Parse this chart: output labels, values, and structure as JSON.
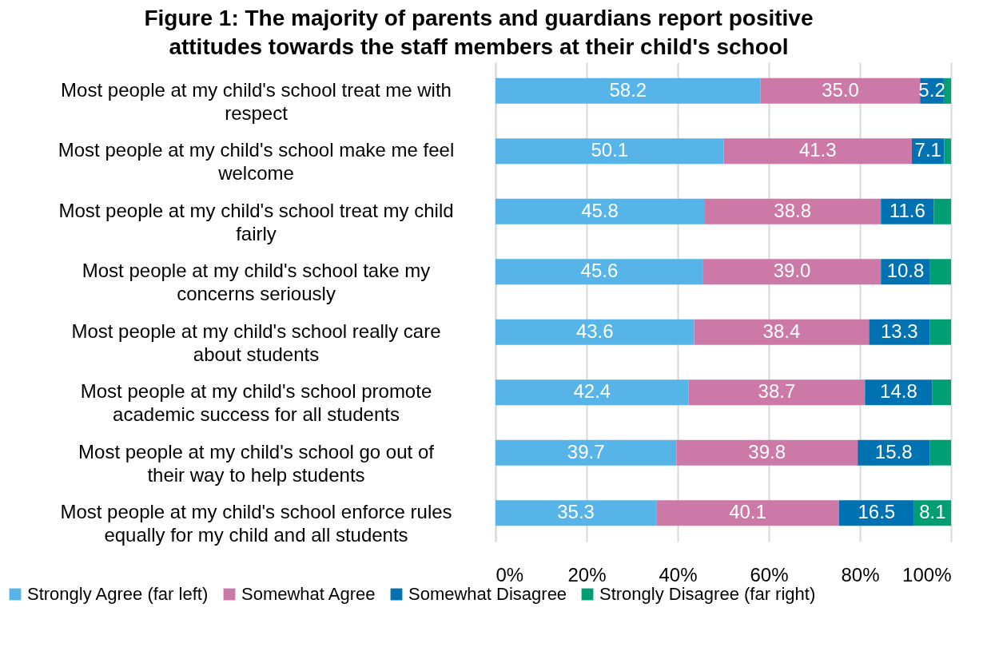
{
  "chart_data": {
    "type": "bar",
    "orientation": "horizontal",
    "stacked": true,
    "title": "Figure 1: The majority of parents and guardians report positive attitudes towards the staff members at their child's school",
    "categories": [
      "Most people at my child's school treat me with respect",
      "Most people at my child's school make me feel welcome",
      "Most people at my child's school treat my child fairly",
      "Most people at my child's school take my concerns seriously",
      "Most people at my child's school really care about students",
      "Most people at my child's school promote academic success for all students",
      "Most people at my child's school go out of their way to help students",
      "Most people at my child's school enforce rules equally for my child and all students"
    ],
    "series": [
      {
        "name": "Strongly Agree (far left)",
        "color": "#56b4e9",
        "values": [
          58.2,
          50.1,
          45.8,
          45.6,
          43.6,
          42.4,
          39.7,
          35.3
        ],
        "value_labels": [
          "58.2",
          "50.1",
          "45.8",
          "45.6",
          "43.6",
          "42.4",
          "39.7",
          "35.3"
        ]
      },
      {
        "name": "Somewhat Agree",
        "color": "#cc79a7",
        "values": [
          35.0,
          41.3,
          38.8,
          39.0,
          38.4,
          38.7,
          39.8,
          40.1
        ],
        "value_labels": [
          "35.0",
          "41.3",
          "38.8",
          "39.0",
          "38.4",
          "38.7",
          "39.8",
          "40.1"
        ]
      },
      {
        "name": "Somewhat Disagree",
        "color": "#0072b2",
        "values": [
          5.2,
          7.1,
          11.6,
          10.8,
          13.3,
          14.8,
          15.8,
          16.5
        ],
        "value_labels": [
          "5.2",
          "7.1",
          "11.6",
          "10.8",
          "13.3",
          "14.8",
          "15.8",
          "16.5"
        ]
      },
      {
        "name": "Strongly Disagree (far right)",
        "color": "#009e73",
        "values": [
          1.6,
          1.5,
          3.8,
          4.6,
          4.7,
          4.1,
          4.7,
          8.1
        ],
        "value_labels": [
          null,
          null,
          null,
          null,
          null,
          null,
          null,
          "8.1"
        ]
      }
    ],
    "xlim": [
      0,
      100
    ],
    "xticks": [
      {
        "value": 0,
        "label": "0%"
      },
      {
        "value": 20,
        "label": "20%"
      },
      {
        "value": 40,
        "label": "40%"
      },
      {
        "value": 60,
        "label": "60%"
      },
      {
        "value": 80,
        "label": "80%"
      },
      {
        "value": 100,
        "label": "100%"
      }
    ],
    "grid": "x",
    "legend": "bottom"
  }
}
